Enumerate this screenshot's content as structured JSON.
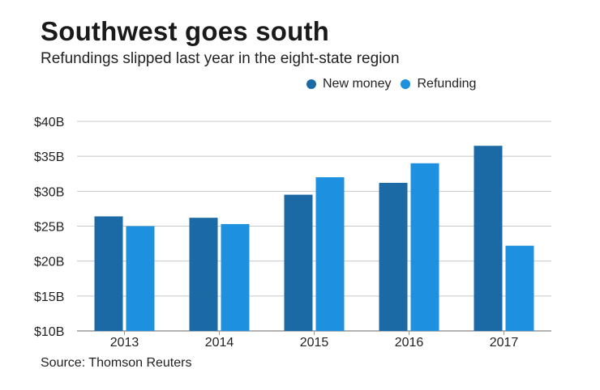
{
  "colors": {
    "new_money": "#1c6aa5",
    "refunding": "#1e90e0",
    "grid": "#c8c8c8",
    "axis": "#999999"
  },
  "chart_data": {
    "type": "bar",
    "title": "Southwest goes south",
    "subtitle": "Refundings slipped last year in the eight-state region",
    "source": "Source: Thomson Reuters",
    "categories": [
      "2013",
      "2014",
      "2015",
      "2016",
      "2017"
    ],
    "series": [
      {
        "name": "New money",
        "values": [
          26.4,
          26.2,
          29.5,
          31.2,
          36.5
        ]
      },
      {
        "name": "Refunding",
        "values": [
          25.0,
          25.3,
          32.0,
          34.0,
          22.2
        ]
      }
    ],
    "ylim": [
      10,
      40
    ],
    "yticks": [
      10,
      15,
      20,
      25,
      30,
      35,
      40
    ],
    "ytick_labels": [
      "$10B",
      "$15B",
      "$20B",
      "$25B",
      "$30B",
      "$35B",
      "$40B"
    ],
    "xlabel": "",
    "ylabel": "",
    "legend_position": "top-right",
    "grid": true
  }
}
